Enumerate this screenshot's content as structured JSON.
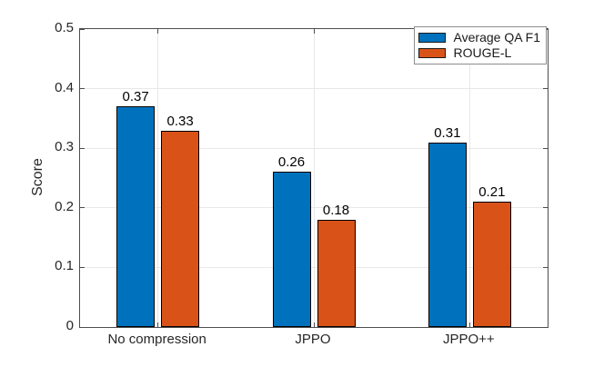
{
  "figure": {
    "background": "#ffffff"
  },
  "chart_data": {
    "type": "bar",
    "title": "",
    "xlabel": "",
    "ylabel": "Score",
    "categories": [
      "No compression",
      "JPPO",
      "JPPO++"
    ],
    "series": [
      {
        "name": "Average QA F1",
        "color": "#0072BD",
        "values": [
          0.37,
          0.26,
          0.31
        ],
        "value_labels": [
          "0.37",
          "0.26",
          "0.31"
        ]
      },
      {
        "name": "ROUGE-L",
        "color": "#D95319",
        "values": [
          0.33,
          0.18,
          0.21
        ],
        "value_labels": [
          "0.33",
          "0.18",
          "0.21"
        ]
      }
    ],
    "ylim": [
      0,
      0.5
    ],
    "yticks": [
      0,
      0.1,
      0.2,
      0.3,
      0.4,
      0.5
    ],
    "ytick_labels": [
      "0",
      "0.1",
      "0.2",
      "0.3",
      "0.4",
      "0.5"
    ],
    "grid": true,
    "bar_value_labels_shown": true,
    "legend_position": "northeast",
    "colors": {
      "axis_box": "#4d4d4d",
      "grid": "#e8e8e8",
      "tick_text": "#262626",
      "bar_edge": "#000000",
      "legend_border": "#8c8c8c",
      "plot_background": "#ffffff"
    }
  }
}
